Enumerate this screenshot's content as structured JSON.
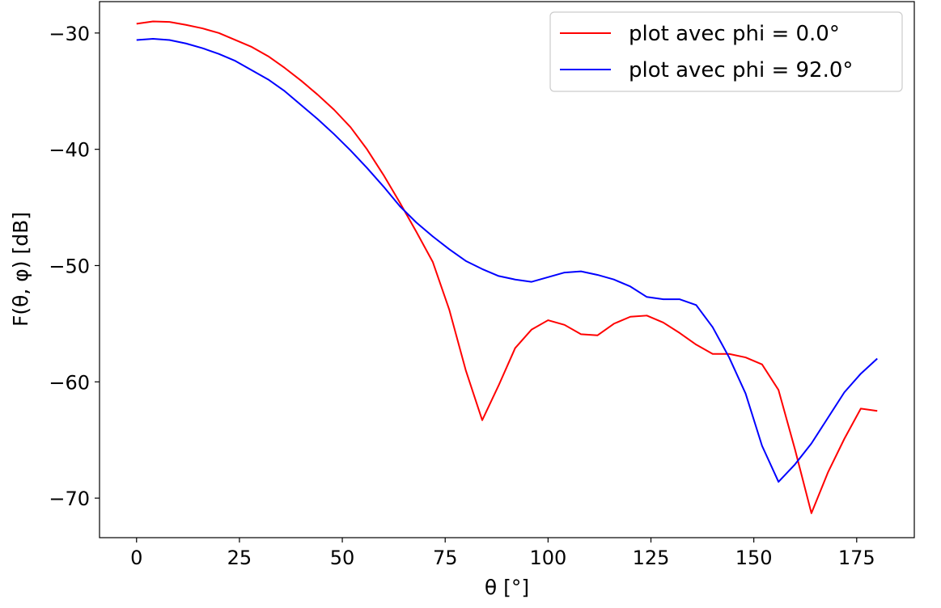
{
  "chart_data": {
    "type": "line",
    "xlabel": "θ [°]",
    "ylabel": "F(θ, φ) [dB]",
    "xlim": [
      -9,
      189
    ],
    "ylim": [
      -73.4,
      -27.3
    ],
    "xticks": [
      0,
      25,
      50,
      75,
      100,
      125,
      150,
      175
    ],
    "yticks": [
      -30,
      -40,
      -50,
      -60,
      -70
    ],
    "xtick_labels": [
      "0",
      "25",
      "50",
      "75",
      "100",
      "125",
      "150",
      "175"
    ],
    "ytick_labels": [
      "−30",
      "−40",
      "−50",
      "−60",
      "−70"
    ],
    "grid": false,
    "legend_position": "top-right",
    "series": [
      {
        "name": "plot avec phi = 0.0°",
        "color": "#ff0000",
        "x": [
          0,
          4,
          8,
          12,
          16,
          20,
          24,
          28,
          32,
          36,
          40,
          44,
          48,
          52,
          56,
          60,
          64,
          68,
          72,
          76,
          80,
          84,
          88,
          92,
          96,
          100,
          104,
          108,
          112,
          116,
          120,
          124,
          128,
          132,
          136,
          140,
          144,
          148,
          152,
          156,
          160,
          164,
          168,
          172,
          176,
          180
        ],
        "y": [
          -29.2,
          -29.0,
          -29.05,
          -29.3,
          -29.6,
          -30.0,
          -30.6,
          -31.2,
          -32.0,
          -33.0,
          -34.1,
          -35.3,
          -36.6,
          -38.1,
          -40.0,
          -42.2,
          -44.6,
          -47.1,
          -49.7,
          -53.8,
          -59.0,
          -63.3,
          -60.3,
          -57.1,
          -55.5,
          -54.7,
          -55.1,
          -55.9,
          -56.0,
          -55.0,
          -54.4,
          -54.3,
          -54.9,
          -55.8,
          -56.8,
          -57.6,
          -57.6,
          -57.9,
          -58.5,
          -60.7,
          -65.8,
          -71.3,
          -67.8,
          -64.9,
          -62.3,
          -62.5
        ]
      },
      {
        "name": "plot avec phi = 92.0°",
        "color": "#0000ff",
        "x": [
          0,
          4,
          8,
          12,
          16,
          20,
          24,
          28,
          32,
          36,
          40,
          44,
          48,
          52,
          56,
          60,
          64,
          68,
          72,
          76,
          80,
          84,
          88,
          92,
          96,
          100,
          104,
          108,
          112,
          116,
          120,
          124,
          128,
          132,
          136,
          140,
          144,
          148,
          152,
          156,
          160,
          164,
          168,
          172,
          176,
          180
        ],
        "y": [
          -30.6,
          -30.5,
          -30.6,
          -30.9,
          -31.3,
          -31.8,
          -32.4,
          -33.2,
          -34.0,
          -35.0,
          -36.2,
          -37.4,
          -38.7,
          -40.1,
          -41.6,
          -43.2,
          -44.9,
          -46.3,
          -47.5,
          -48.6,
          -49.6,
          -50.3,
          -50.9,
          -51.2,
          -51.4,
          -51.0,
          -50.6,
          -50.5,
          -50.8,
          -51.2,
          -51.8,
          -52.7,
          -52.9,
          -52.9,
          -53.4,
          -55.3,
          -57.9,
          -61.0,
          -65.5,
          -68.6,
          -67.1,
          -65.3,
          -63.1,
          -60.9,
          -59.3,
          -58.0
        ]
      }
    ]
  }
}
